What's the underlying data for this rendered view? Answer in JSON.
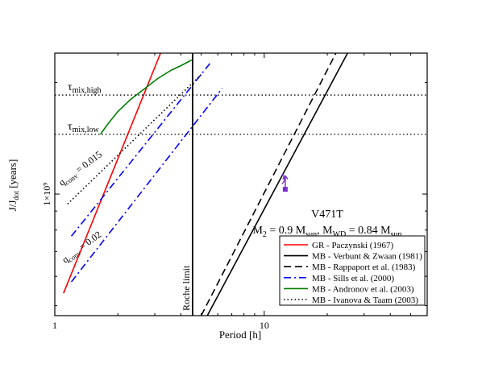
{
  "chart_data": {
    "type": "line",
    "title": "",
    "xlabel": "Period [h]",
    "ylabel": "J/J_dot [years]",
    "xscale": "log",
    "yscale": "log",
    "xlim": [
      1,
      60
    ],
    "ylim": [
      470000000.0,
      2400000000.0
    ],
    "grid": false,
    "x_ticks": [
      {
        "value": 1,
        "label": "1"
      },
      {
        "value": 10,
        "label": "10"
      }
    ],
    "y_ticks": [
      {
        "value": 1000000000.0,
        "label": "1×10⁹"
      }
    ],
    "legend_placement": "bottom-right",
    "series": [
      {
        "name": "GR - Paczynski (1967)",
        "color": "#ff0000",
        "style": "solid",
        "x": [
          1.1,
          3.2
        ],
        "y": [
          540000000.0,
          2400000000.0
        ]
      },
      {
        "name": "MB - Verbunt & Zwaan (1981)",
        "color": "#000000",
        "style": "solid",
        "x": [
          5.35,
          25.0
        ],
        "y": [
          470000000.0,
          2400000000.0
        ]
      },
      {
        "name": "MB - Rappaport et al. (1983)",
        "color": "#000000",
        "style": "dashed",
        "x": [
          5.0,
          22.0
        ],
        "y": [
          470000000.0,
          2400000000.0
        ]
      },
      {
        "name": "MB - Sills et al. (2000)",
        "color": "#0000ff",
        "style": "dashdot",
        "segments": [
          {
            "x": [
              1.2,
              5.5
            ],
            "y": [
              770000000.0,
              2250000000.0
            ]
          },
          {
            "x": [
              1.2,
              6.3
            ],
            "y": [
              580000000.0,
              1930000000.0
            ]
          }
        ]
      },
      {
        "name": "MB - Andronov et al. (2003)",
        "color": "#008000",
        "style": "solid",
        "x": [
          1.65,
          1.8,
          2.0,
          2.3,
          2.7,
          3.1,
          3.6,
          4.0,
          4.5
        ],
        "y": [
          1450000000.0,
          1550000000.0,
          1670000000.0,
          1800000000.0,
          1930000000.0,
          2050000000.0,
          2160000000.0,
          2220000000.0,
          2300000000.0
        ]
      },
      {
        "name": "MB - Ivanova & Taam (2003)",
        "color": "#000000",
        "style": "dotted",
        "x": [
          1.15,
          5.0
        ],
        "y": [
          940000000.0,
          2100000000.0
        ]
      }
    ],
    "hlines": [
      {
        "y": 1850000000.0,
        "label": "τ",
        "sub": "mix,high"
      },
      {
        "y": 1450000000.0,
        "label": "τ",
        "sub": "mix,low"
      }
    ],
    "vline": {
      "x": 4.55,
      "label": "Roche limit"
    },
    "point": {
      "x": 12.6,
      "y": 1030000000.0,
      "errorbar_upper": 1120000000.0,
      "color": "#7a2ecc"
    },
    "annotations": [
      {
        "main": "q",
        "sub": "conv",
        "value": " = 0.015",
        "x": 1.08,
        "y": 1050000000.0,
        "angle": -37
      },
      {
        "main": "q",
        "sub": "conv",
        "value": " = 0.02",
        "x": 1.12,
        "y": 650000000.0,
        "angle": -37
      }
    ],
    "object_label": {
      "name": "V471T",
      "params": [
        {
          "t": "M",
          "s": ""
        },
        {
          "t": "2",
          "s": "sub"
        },
        {
          "t": " = 0.9 M",
          "s": ""
        },
        {
          "t": "sun",
          "s": "sub"
        },
        {
          "t": ", M",
          "s": ""
        },
        {
          "t": "WD",
          "s": "sub"
        },
        {
          "t": " = 0.84 M",
          "s": ""
        },
        {
          "t": "sun",
          "s": "sub"
        }
      ]
    }
  }
}
